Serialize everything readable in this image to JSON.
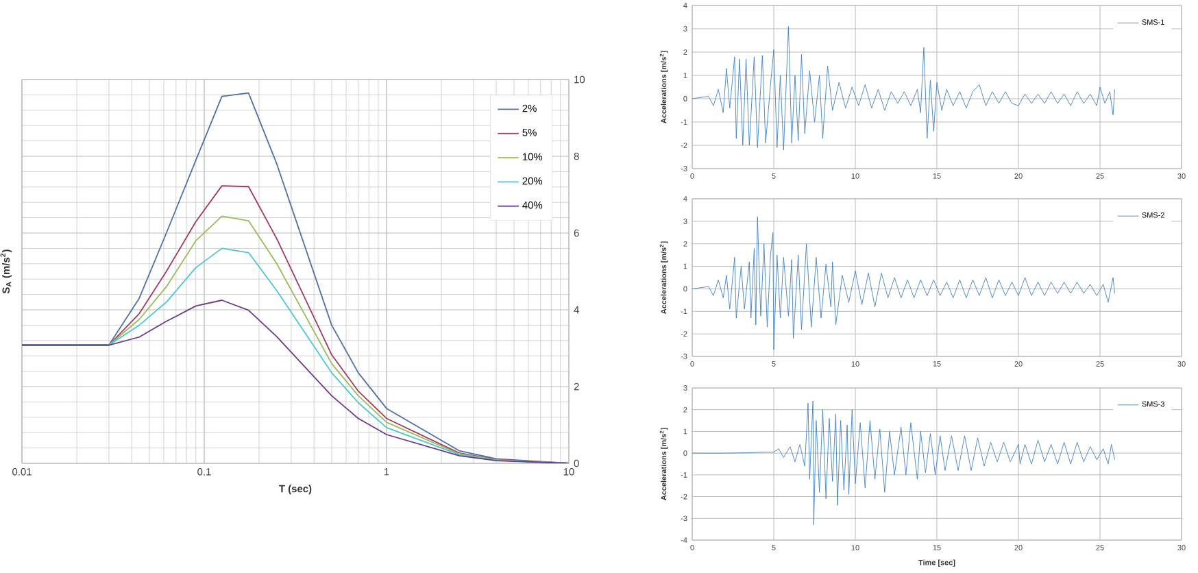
{
  "chart_data": [
    {
      "type": "line",
      "xlabel": "T (sec)",
      "ylabel": "S$_{A}$ (m/s$^{2}$)",
      "log": "x",
      "grid": true,
      "legend": "top right",
      "xlim": [
        0.01,
        10
      ],
      "ylim": [
        0,
        10
      ],
      "xticks": [
        0.01,
        0.1,
        1,
        10
      ],
      "yticks": [
        0,
        2,
        4,
        6,
        8,
        10
      ],
      "x": [
        0.01,
        0.03,
        0.044,
        0.062,
        0.09,
        0.125,
        0.175,
        0.25,
        0.5,
        0.7,
        1,
        2.5,
        4,
        10
      ],
      "series": [
        {
          "name": "2%",
          "color": "#4f6fa8",
          "values": [
            3.08,
            3.08,
            4.3,
            6.0,
            7.9,
            9.56,
            9.65,
            7.8,
            3.6,
            2.36,
            1.43,
            0.33,
            0.12,
            0
          ]
        },
        {
          "name": "5%",
          "color": "#a33a5a",
          "values": [
            3.08,
            3.08,
            3.9,
            5.0,
            6.3,
            7.23,
            7.21,
            5.85,
            2.83,
            1.88,
            1.17,
            0.27,
            0.1,
            0
          ]
        },
        {
          "name": "10%",
          "color": "#9bbb59",
          "values": [
            3.08,
            3.08,
            3.75,
            4.6,
            5.8,
            6.44,
            6.32,
            5.2,
            2.6,
            1.76,
            1.07,
            0.25,
            0.09,
            0
          ]
        },
        {
          "name": "20%",
          "color": "#4bc6d6",
          "values": [
            3.08,
            3.08,
            3.6,
            4.2,
            5.1,
            5.6,
            5.49,
            4.5,
            2.36,
            1.58,
            0.93,
            0.23,
            0.08,
            0
          ]
        },
        {
          "name": "40%",
          "color": "#6a3a8a",
          "values": [
            3.08,
            3.08,
            3.29,
            3.7,
            4.1,
            4.25,
            3.99,
            3.3,
            1.76,
            1.17,
            0.75,
            0.2,
            0.07,
            0
          ]
        }
      ]
    },
    {
      "type": "line",
      "ylabel": "Accelerations [m/s$^{2}$]",
      "grid": true,
      "legend": "top right",
      "xlim": [
        0,
        30
      ],
      "ylim": [
        -3,
        4
      ],
      "xticks": [
        0,
        5,
        10,
        15,
        20,
        25,
        30
      ],
      "yticks": [
        -3,
        -2,
        -1,
        0,
        1,
        2,
        3,
        4
      ],
      "series": [
        {
          "name": "SMS-1",
          "color": "#3f81c4",
          "x": [
            0,
            0.5,
            1,
            1.3,
            1.6,
            1.9,
            2.1,
            2.3,
            2.6,
            2.7,
            2.9,
            3.1,
            3.3,
            3.5,
            3.8,
            4.0,
            4.3,
            4.5,
            4.8,
            5.0,
            5.2,
            5.4,
            5.6,
            5.9,
            6.1,
            6.3,
            6.5,
            6.7,
            6.9,
            7.2,
            7.5,
            7.8,
            8.0,
            8.3,
            8.6,
            9.0,
            9.4,
            9.8,
            10.2,
            10.6,
            11.0,
            11.4,
            11.8,
            12.2,
            12.6,
            13.0,
            13.4,
            13.8,
            14.0,
            14.2,
            14.4,
            14.6,
            14.8,
            15.0,
            15.3,
            15.6,
            16.0,
            16.4,
            16.8,
            17.2,
            17.6,
            18.0,
            18.4,
            18.8,
            19.2,
            19.6,
            20.0,
            20.4,
            20.8,
            21.2,
            21.6,
            22.0,
            22.4,
            22.8,
            23.2,
            23.6,
            24.0,
            24.4,
            24.8,
            25.0,
            25.3,
            25.6,
            25.8,
            25.9
          ],
          "values": [
            0,
            0.05,
            0.1,
            -0.3,
            0.4,
            -0.6,
            1.3,
            -0.4,
            1.8,
            -1.7,
            1.7,
            -2.0,
            1.7,
            -2.0,
            1.8,
            -2.1,
            1.85,
            -1.9,
            0.6,
            2.1,
            -2.1,
            1.0,
            -2.2,
            3.1,
            -1.9,
            1.0,
            -1.8,
            1.9,
            -1.5,
            1.2,
            -1.0,
            1.0,
            -1.7,
            1.4,
            -0.5,
            0.7,
            -0.4,
            0.5,
            -0.3,
            0.6,
            -0.4,
            0.4,
            -0.5,
            0.3,
            -0.2,
            0.3,
            -0.3,
            0.4,
            -0.6,
            2.2,
            -1.7,
            0.8,
            -1.4,
            0.7,
            -0.5,
            0.4,
            -0.3,
            0.3,
            -0.4,
            0.3,
            0.6,
            -0.3,
            0.3,
            -0.2,
            0.3,
            -0.2,
            -0.3,
            0.2,
            -0.2,
            0.2,
            -0.2,
            0.3,
            -0.2,
            0.2,
            -0.3,
            0.3,
            -0.2,
            0.2,
            -0.3,
            0.5,
            -0.2,
            0.3,
            -0.7,
            0.4
          ]
        }
      ]
    },
    {
      "type": "line",
      "ylabel": "Accelerations [m/s$^{2}$]",
      "grid": true,
      "legend": "top right",
      "xlim": [
        0,
        30
      ],
      "ylim": [
        -3,
        4
      ],
      "xticks": [
        0,
        5,
        10,
        15,
        20,
        25,
        30
      ],
      "yticks": [
        -3,
        -2,
        -1,
        0,
        1,
        2,
        3,
        4
      ],
      "series": [
        {
          "name": "SMS-2",
          "color": "#3f81c4",
          "x": [
            0,
            0.5,
            1,
            1.3,
            1.6,
            1.9,
            2.1,
            2.3,
            2.6,
            2.7,
            3.0,
            3.2,
            3.5,
            3.6,
            3.8,
            3.9,
            4.0,
            4.2,
            4.4,
            4.6,
            4.8,
            4.95,
            5.0,
            5.2,
            5.4,
            5.6,
            5.9,
            6.1,
            6.2,
            6.5,
            6.7,
            7.0,
            7.3,
            7.6,
            7.9,
            8.2,
            8.5,
            8.6,
            8.8,
            9.2,
            9.6,
            10.0,
            10.4,
            10.8,
            11.2,
            11.6,
            12.0,
            12.4,
            12.8,
            13.2,
            13.6,
            14.0,
            14.4,
            14.8,
            15.2,
            15.6,
            16.0,
            16.4,
            16.8,
            17.2,
            17.6,
            18.0,
            18.4,
            18.8,
            19.2,
            19.6,
            20.0,
            20.4,
            20.8,
            21.2,
            21.6,
            22.0,
            22.4,
            22.8,
            23.2,
            23.6,
            24.0,
            24.4,
            24.8,
            25.2,
            25.5,
            25.8,
            25.9
          ],
          "values": [
            0,
            0.05,
            0.1,
            -0.3,
            0.4,
            -0.4,
            0.6,
            -0.9,
            1.4,
            -1.3,
            1.0,
            -0.9,
            1.2,
            -1.3,
            1.8,
            -1.6,
            3.2,
            -1.2,
            2.0,
            -1.7,
            1.5,
            2.5,
            -2.7,
            1.5,
            -1.3,
            1.4,
            -1.2,
            1.3,
            -2.2,
            1.5,
            -1.8,
            2.0,
            -1.7,
            1.4,
            -1.3,
            1.1,
            -0.8,
            1.2,
            -1.6,
            0.6,
            -0.6,
            0.8,
            -0.7,
            0.7,
            -0.8,
            0.7,
            -0.4,
            0.5,
            -0.4,
            0.4,
            -0.4,
            0.4,
            -0.3,
            0.4,
            -0.3,
            0.3,
            -0.4,
            0.4,
            -0.4,
            0.4,
            -0.3,
            0.5,
            -0.4,
            0.4,
            -0.3,
            0.3,
            -0.3,
            0.5,
            -0.3,
            0.3,
            -0.3,
            0.3,
            -0.2,
            0.3,
            -0.2,
            0.3,
            -0.2,
            0.2,
            -0.3,
            0.2,
            -0.6,
            0.5,
            -0.2
          ]
        }
      ]
    },
    {
      "type": "line",
      "xlabel": "Time [sec]",
      "ylabel": "Accelerations [m/s$^{2}$]",
      "grid": true,
      "legend": "top right",
      "xlim": [
        0,
        30
      ],
      "ylim": [
        -4,
        3
      ],
      "xticks": [
        0,
        5,
        10,
        15,
        20,
        25,
        30
      ],
      "yticks": [
        -4,
        -3,
        -2,
        -1,
        0,
        1,
        2,
        3
      ],
      "series": [
        {
          "name": "SMS-3",
          "color": "#3f81c4",
          "x": [
            0,
            2,
            3.5,
            4.5,
            5.0,
            5.3,
            5.6,
            6.0,
            6.3,
            6.6,
            6.9,
            7.1,
            7.2,
            7.4,
            7.45,
            7.6,
            7.8,
            8.0,
            8.2,
            8.4,
            8.6,
            8.8,
            8.9,
            9.1,
            9.3,
            9.5,
            9.6,
            9.8,
            10.0,
            10.3,
            10.6,
            10.9,
            11.2,
            11.5,
            11.8,
            12.1,
            12.4,
            12.8,
            13.1,
            13.4,
            13.8,
            14.0,
            14.3,
            14.6,
            14.9,
            15.2,
            15.5,
            15.9,
            16.3,
            16.7,
            17.1,
            17.5,
            17.9,
            18.3,
            18.7,
            19.1,
            19.5,
            20.0,
            20.1,
            20.4,
            20.8,
            21.2,
            21.6,
            22.0,
            22.4,
            22.8,
            23.2,
            23.6,
            24.0,
            24.4,
            24.8,
            25.2,
            25.5,
            25.7,
            25.9
          ],
          "values": [
            0,
            0,
            0.02,
            0.05,
            0.05,
            0.2,
            -0.2,
            0.3,
            -0.4,
            0.4,
            -0.6,
            2.3,
            -1.2,
            2.4,
            -3.3,
            1.5,
            -1.8,
            2.0,
            -2.1,
            1.6,
            -1.3,
            1.8,
            -2.4,
            1.5,
            -1.7,
            1.3,
            -1.9,
            2.0,
            -1.4,
            1.4,
            -1.6,
            1.5,
            -1.2,
            1.1,
            -1.8,
            1.0,
            -1.0,
            1.2,
            -1.0,
            1.4,
            -1.2,
            1.0,
            -0.9,
            0.9,
            -1.0,
            0.8,
            -0.8,
            0.8,
            -0.8,
            0.8,
            -0.8,
            0.7,
            -0.6,
            0.5,
            -0.4,
            0.5,
            -0.4,
            0.4,
            -0.5,
            0.4,
            -0.5,
            0.6,
            -0.4,
            0.4,
            -0.5,
            0.5,
            -0.5,
            0.5,
            -0.4,
            0.3,
            -0.3,
            0.2,
            -0.5,
            0.4,
            -0.3
          ]
        }
      ]
    }
  ]
}
